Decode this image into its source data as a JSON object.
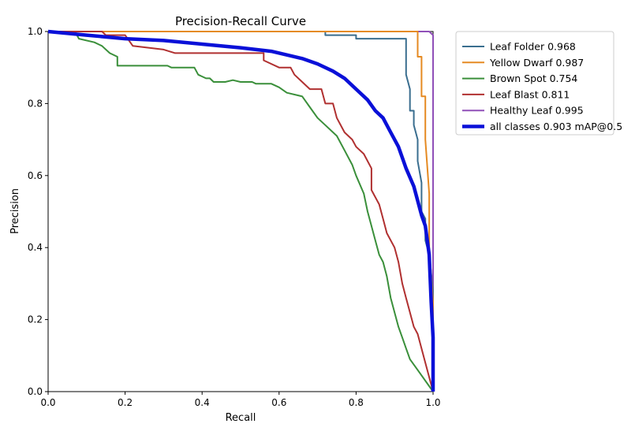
{
  "chart_data": {
    "type": "line",
    "title": "Precision-Recall Curve",
    "xlabel": "Recall",
    "ylabel": "Precision",
    "xlim": [
      0,
      1
    ],
    "ylim": [
      0,
      1
    ],
    "xticks": [
      "0.0",
      "0.2",
      "0.4",
      "0.6",
      "0.8",
      "1.0"
    ],
    "yticks": [
      "0.0",
      "0.2",
      "0.4",
      "0.6",
      "0.8",
      "1.0"
    ],
    "grid": false,
    "legend_position": "outside-upper-right",
    "series": [
      {
        "name": "Leaf Folder 0.968",
        "color": "#3a6e8f",
        "width": 2,
        "points": [
          [
            0,
            1
          ],
          [
            0.72,
            1
          ],
          [
            0.72,
            0.99
          ],
          [
            0.8,
            0.99
          ],
          [
            0.8,
            0.98
          ],
          [
            0.93,
            0.98
          ],
          [
            0.93,
            0.88
          ],
          [
            0.94,
            0.84
          ],
          [
            0.94,
            0.78
          ],
          [
            0.95,
            0.78
          ],
          [
            0.95,
            0.74
          ],
          [
            0.96,
            0.7
          ],
          [
            0.96,
            0.64
          ],
          [
            0.97,
            0.58
          ],
          [
            0.97,
            0.5
          ],
          [
            0.98,
            0.48
          ],
          [
            0.98,
            0.42
          ],
          [
            0.99,
            0.38
          ],
          [
            1.0,
            0.28
          ],
          [
            1.0,
            0
          ]
        ]
      },
      {
        "name": "Yellow Dwarf 0.987",
        "color": "#e58a22",
        "width": 2,
        "points": [
          [
            0,
            1
          ],
          [
            0.96,
            1
          ],
          [
            0.96,
            0.93
          ],
          [
            0.97,
            0.93
          ],
          [
            0.97,
            0.82
          ],
          [
            0.98,
            0.82
          ],
          [
            0.98,
            0.7
          ],
          [
            0.99,
            0.55
          ],
          [
            0.99,
            0.4
          ],
          [
            1.0,
            0.25
          ],
          [
            1.0,
            0
          ]
        ]
      },
      {
        "name": "Brown Spot 0.754",
        "color": "#3a8f3a",
        "width": 2,
        "points": [
          [
            0,
            1
          ],
          [
            0.07,
            1
          ],
          [
            0.08,
            0.98
          ],
          [
            0.12,
            0.97
          ],
          [
            0.14,
            0.96
          ],
          [
            0.16,
            0.94
          ],
          [
            0.18,
            0.93
          ],
          [
            0.18,
            0.905
          ],
          [
            0.31,
            0.905
          ],
          [
            0.32,
            0.9
          ],
          [
            0.38,
            0.9
          ],
          [
            0.39,
            0.88
          ],
          [
            0.41,
            0.87
          ],
          [
            0.42,
            0.87
          ],
          [
            0.43,
            0.86
          ],
          [
            0.46,
            0.86
          ],
          [
            0.48,
            0.865
          ],
          [
            0.5,
            0.86
          ],
          [
            0.53,
            0.86
          ],
          [
            0.54,
            0.855
          ],
          [
            0.58,
            0.855
          ],
          [
            0.6,
            0.845
          ],
          [
            0.62,
            0.83
          ],
          [
            0.66,
            0.82
          ],
          [
            0.68,
            0.79
          ],
          [
            0.7,
            0.76
          ],
          [
            0.72,
            0.74
          ],
          [
            0.75,
            0.71
          ],
          [
            0.77,
            0.67
          ],
          [
            0.79,
            0.63
          ],
          [
            0.8,
            0.6
          ],
          [
            0.82,
            0.55
          ],
          [
            0.83,
            0.5
          ],
          [
            0.84,
            0.46
          ],
          [
            0.85,
            0.42
          ],
          [
            0.86,
            0.38
          ],
          [
            0.87,
            0.36
          ],
          [
            0.88,
            0.32
          ],
          [
            0.89,
            0.26
          ],
          [
            0.9,
            0.22
          ],
          [
            0.91,
            0.18
          ],
          [
            0.92,
            0.15
          ],
          [
            0.93,
            0.12
          ],
          [
            0.94,
            0.09
          ],
          [
            0.96,
            0.06
          ],
          [
            1.0,
            0
          ]
        ]
      },
      {
        "name": "Leaf Blast 0.811",
        "color": "#b03030",
        "width": 2,
        "points": [
          [
            0,
            1
          ],
          [
            0.14,
            1
          ],
          [
            0.15,
            0.99
          ],
          [
            0.2,
            0.99
          ],
          [
            0.22,
            0.96
          ],
          [
            0.3,
            0.95
          ],
          [
            0.33,
            0.94
          ],
          [
            0.56,
            0.94
          ],
          [
            0.56,
            0.92
          ],
          [
            0.6,
            0.9
          ],
          [
            0.63,
            0.9
          ],
          [
            0.64,
            0.88
          ],
          [
            0.66,
            0.86
          ],
          [
            0.68,
            0.84
          ],
          [
            0.71,
            0.84
          ],
          [
            0.72,
            0.8
          ],
          [
            0.74,
            0.8
          ],
          [
            0.75,
            0.76
          ],
          [
            0.77,
            0.72
          ],
          [
            0.79,
            0.7
          ],
          [
            0.8,
            0.68
          ],
          [
            0.82,
            0.66
          ],
          [
            0.84,
            0.62
          ],
          [
            0.84,
            0.56
          ],
          [
            0.86,
            0.52
          ],
          [
            0.87,
            0.48
          ],
          [
            0.88,
            0.44
          ],
          [
            0.9,
            0.4
          ],
          [
            0.91,
            0.36
          ],
          [
            0.92,
            0.3
          ],
          [
            0.93,
            0.26
          ],
          [
            0.94,
            0.22
          ],
          [
            0.95,
            0.18
          ],
          [
            0.96,
            0.16
          ],
          [
            0.98,
            0.08
          ],
          [
            1.0,
            0
          ]
        ]
      },
      {
        "name": "Healthy Leaf 0.995",
        "color": "#9050b8",
        "width": 2,
        "points": [
          [
            0,
            1
          ],
          [
            0.99,
            1
          ],
          [
            1.0,
            0.99
          ],
          [
            1.0,
            0
          ]
        ]
      },
      {
        "name": "all classes 0.903 mAP@0.5",
        "color": "#0a10d8",
        "width": 4.5,
        "points": [
          [
            0,
            1
          ],
          [
            0.1,
            0.99
          ],
          [
            0.2,
            0.98
          ],
          [
            0.3,
            0.975
          ],
          [
            0.4,
            0.965
          ],
          [
            0.5,
            0.955
          ],
          [
            0.58,
            0.945
          ],
          [
            0.62,
            0.935
          ],
          [
            0.66,
            0.925
          ],
          [
            0.7,
            0.91
          ],
          [
            0.74,
            0.89
          ],
          [
            0.77,
            0.87
          ],
          [
            0.8,
            0.84
          ],
          [
            0.83,
            0.81
          ],
          [
            0.85,
            0.78
          ],
          [
            0.87,
            0.76
          ],
          [
            0.89,
            0.72
          ],
          [
            0.91,
            0.68
          ],
          [
            0.93,
            0.62
          ],
          [
            0.95,
            0.57
          ],
          [
            0.96,
            0.53
          ],
          [
            0.97,
            0.49
          ],
          [
            0.98,
            0.46
          ],
          [
            0.99,
            0.38
          ],
          [
            0.995,
            0.25
          ],
          [
            1.0,
            0.15
          ],
          [
            1.0,
            0
          ]
        ]
      }
    ]
  }
}
